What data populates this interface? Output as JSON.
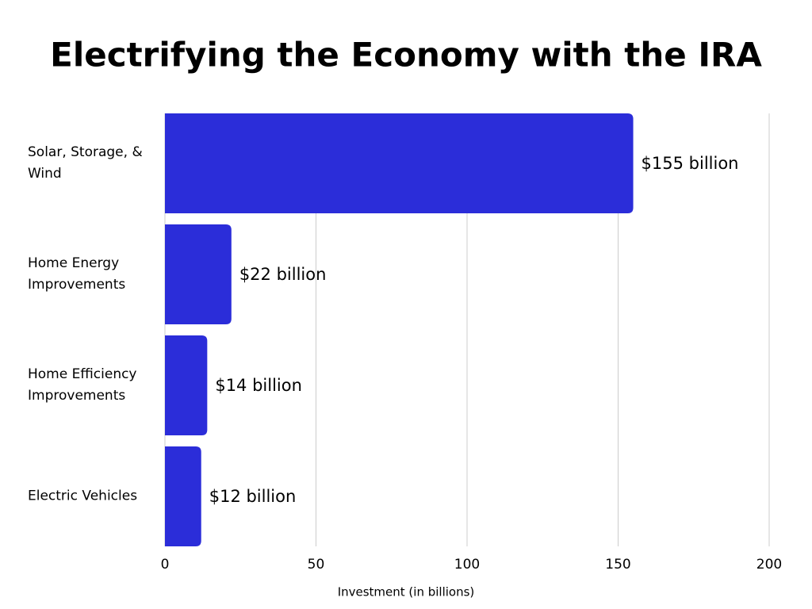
{
  "chart_data": {
    "type": "bar",
    "orientation": "horizontal",
    "title": "Electrifying the Economy with the IRA",
    "x_label": "Investment (in billions)",
    "categories": [
      "Solar, Storage, & Wind",
      "Home Energy Improvements",
      "Home Efficiency Improvements",
      "Electric Vehicles"
    ],
    "values": [
      155,
      22,
      14,
      12
    ],
    "value_labels": [
      "$155 billion",
      "$22 billion",
      "$14 billion",
      "$12 billion"
    ],
    "color": "#2b2dd9",
    "xlim": [
      0,
      200
    ],
    "xticks": [
      0,
      50,
      100,
      150,
      200
    ],
    "grid": true
  }
}
